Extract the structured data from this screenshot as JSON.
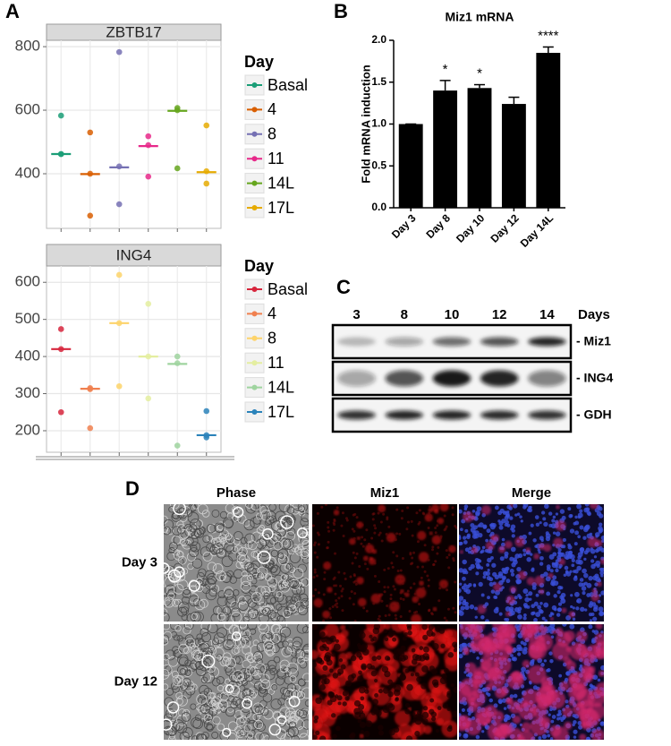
{
  "panels": [
    "A",
    "B",
    "C",
    "D"
  ],
  "chart_data": [
    {
      "type": "dot",
      "title": "ZBTB17",
      "legend_title": "Day",
      "ylim": [
        228,
        820
      ],
      "yticks": [
        400,
        600,
        800
      ],
      "grid": true,
      "series": [
        {
          "name": "Basal",
          "color": "#1b9e77",
          "values": [
            583,
            462,
            462
          ],
          "mean": 462
        },
        {
          "name": "4",
          "color": "#d95f02",
          "values": [
            530,
            400,
            268
          ],
          "mean": 399
        },
        {
          "name": "8",
          "color": "#7570b3",
          "values": [
            783,
            423,
            304
          ],
          "mean": 420
        },
        {
          "name": "11",
          "color": "#e7298a",
          "values": [
            518,
            490,
            391
          ],
          "mean": 487
        },
        {
          "name": "14L",
          "color": "#66a61e",
          "values": [
            607,
            600,
            417
          ],
          "mean": 598
        },
        {
          "name": "17L",
          "color": "#e6ab02",
          "values": [
            552,
            408,
            369
          ],
          "mean": 405
        }
      ]
    },
    {
      "type": "dot",
      "title": "ING4",
      "legend_title": "Day",
      "ylim": [
        142,
        644
      ],
      "yticks": [
        200,
        300,
        400,
        500,
        600
      ],
      "grid": true,
      "series": [
        {
          "name": "Basal",
          "color": "#d7263d",
          "values": [
            474,
            420,
            250
          ],
          "mean": 420
        },
        {
          "name": "4",
          "color": "#f0804f",
          "values": [
            315,
            312,
            207
          ],
          "mean": 313
        },
        {
          "name": "8",
          "color": "#fdd36a",
          "values": [
            620,
            490,
            320
          ],
          "mean": 490
        },
        {
          "name": "11",
          "color": "#e4eea0",
          "values": [
            542,
            400,
            287
          ],
          "mean": 400
        },
        {
          "name": "14L",
          "color": "#9fd49f",
          "values": [
            400,
            382,
            160
          ],
          "mean": 380
        },
        {
          "name": "17L",
          "color": "#2b83ba",
          "values": [
            253,
            188,
            182
          ],
          "mean": 188
        }
      ]
    },
    {
      "type": "bar",
      "title": "Miz1 mRNA",
      "y_label": "Fold mRNA induction",
      "color": "#000000",
      "categories": [
        "Day 3",
        "Day 8",
        "Day 10",
        "Day 12",
        "Day 14L"
      ],
      "values": [
        1.0,
        1.4,
        1.43,
        1.24,
        1.85
      ],
      "errors": [
        0,
        0.12,
        0.04,
        0.08,
        0.07
      ],
      "significance": [
        "",
        "*",
        "*",
        "",
        "****"
      ],
      "ylim": [
        0,
        2.0
      ],
      "yticks": [
        {
          "value": 0,
          "label": "0.0"
        },
        0.5,
        {
          "value": 1.0,
          "label": "1.0"
        },
        1.5,
        {
          "value": 2.0,
          "label": "2.0"
        }
      ]
    }
  ],
  "blot": {
    "lanes": [
      "3",
      "8",
      "10",
      "12",
      "14"
    ],
    "lanes_title": "Days",
    "rows": [
      "- Miz1",
      "- ING4",
      "- GDH"
    ]
  },
  "images": {
    "columns": [
      "Phase",
      "Miz1",
      "Merge"
    ],
    "rows": [
      "Day 3",
      "Day 12"
    ]
  }
}
